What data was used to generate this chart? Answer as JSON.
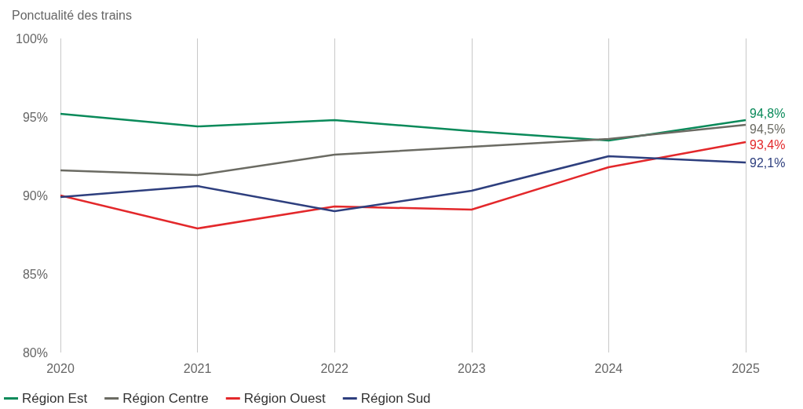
{
  "chart_data": {
    "type": "line",
    "title": "Ponctualité des trains",
    "categories": [
      "2020",
      "2021",
      "2022",
      "2023",
      "2024",
      "2025"
    ],
    "series": [
      {
        "name": "Région Est",
        "color": "#0a8a5a",
        "values": [
          95.2,
          94.4,
          94.8,
          94.1,
          93.5,
          94.8
        ],
        "value_labels": [
          null,
          null,
          null,
          null,
          null,
          "94,8%"
        ]
      },
      {
        "name": "Région Centre",
        "color": "#6b6b63",
        "values": [
          91.6,
          91.3,
          92.6,
          93.1,
          93.6,
          94.5
        ],
        "value_labels": [
          null,
          null,
          null,
          null,
          null,
          "94,5%"
        ]
      },
      {
        "name": "Région Ouest",
        "color": "#e3282b",
        "values": [
          90.0,
          87.9,
          89.3,
          89.1,
          91.8,
          93.4
        ],
        "value_labels": [
          null,
          null,
          null,
          null,
          null,
          "93,4%"
        ]
      },
      {
        "name": "Région Sud",
        "color": "#2e3f7e",
        "values": [
          89.9,
          90.6,
          89.0,
          90.3,
          92.5,
          92.1
        ],
        "value_labels": [
          null,
          null,
          null,
          null,
          null,
          "92,1%"
        ]
      }
    ],
    "ylim": [
      80,
      100
    ],
    "yticks": [
      {
        "value": 80,
        "label": "80%"
      },
      {
        "value": 85,
        "label": "85%"
      },
      {
        "value": 90,
        "label": "90%"
      },
      {
        "value": 95,
        "label": "95%"
      },
      {
        "value": 100,
        "label": "100%"
      }
    ],
    "grid": "x",
    "legend": "bottom left",
    "marker": "none",
    "line_style": "solid"
  }
}
